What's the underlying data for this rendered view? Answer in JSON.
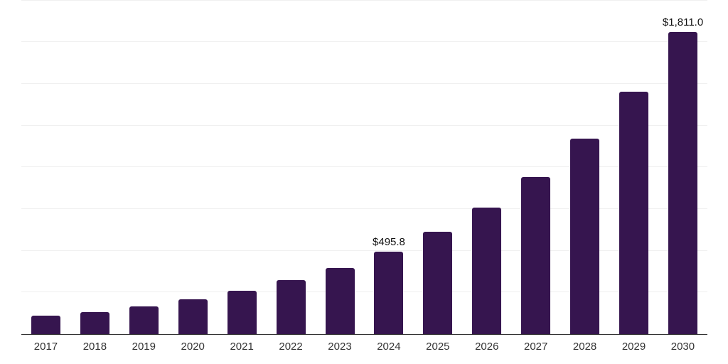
{
  "chart_data": {
    "type": "bar",
    "title": "",
    "xlabel": "",
    "ylabel": "",
    "categories": [
      "2017",
      "2018",
      "2019",
      "2020",
      "2021",
      "2022",
      "2023",
      "2024",
      "2025",
      "2026",
      "2027",
      "2028",
      "2029",
      "2030"
    ],
    "values": [
      110,
      134,
      168,
      208,
      259,
      322,
      398,
      495.8,
      612,
      757,
      942,
      1172,
      1455,
      1811
    ],
    "labeled_points": [
      {
        "category": "2024",
        "index": 7,
        "label": "$495.8"
      },
      {
        "category": "2030",
        "index": 13,
        "label": "$1,811.0"
      }
    ],
    "ylim": [
      0,
      2000
    ],
    "gridline_step": 250,
    "grid": true,
    "legend": "none",
    "colors": {
      "bar": "#36154f",
      "gridline": "#f0f0f0",
      "axis_line": "#333333",
      "tick_label": "#333333",
      "value_label": "#111111",
      "background": "#ffffff"
    }
  }
}
